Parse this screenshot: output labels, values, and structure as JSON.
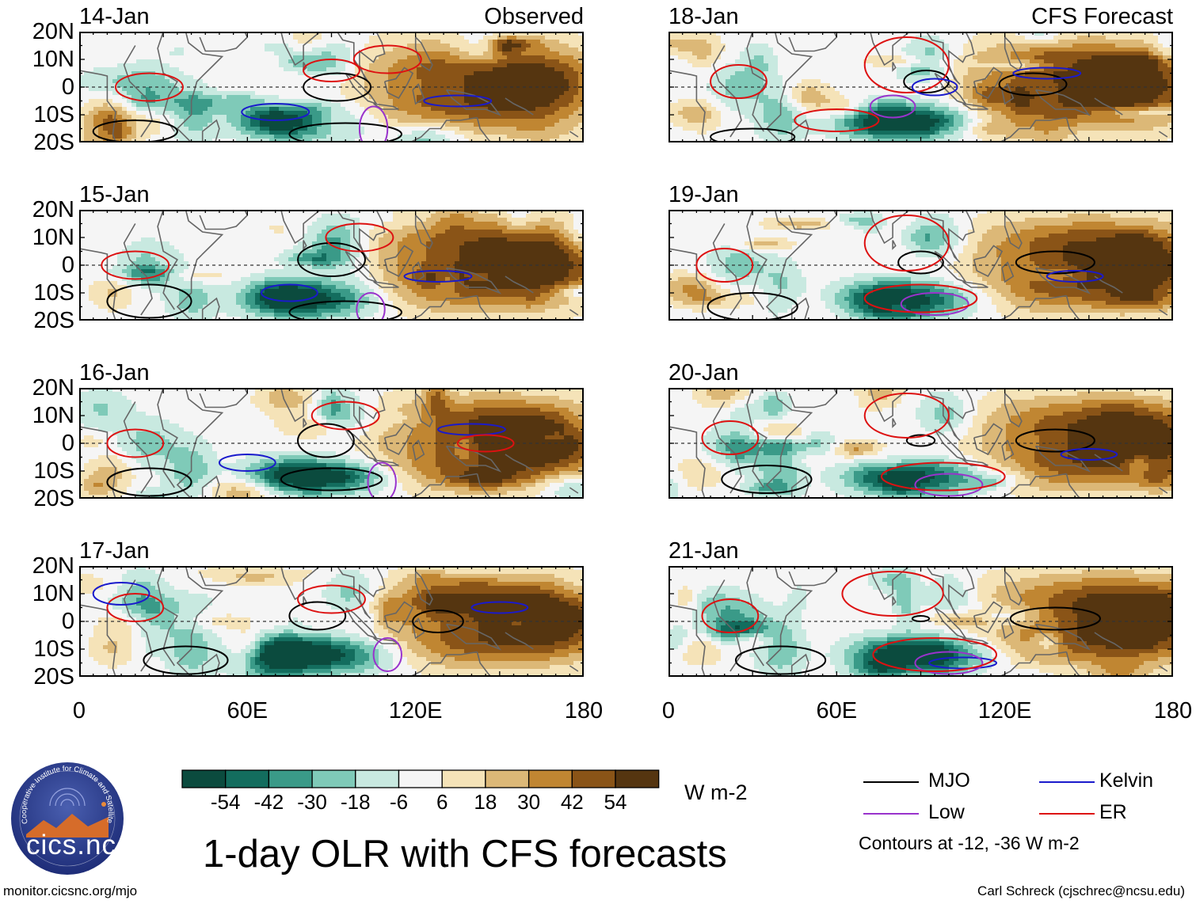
{
  "title": "1-day OLR with CFS forecasts",
  "columns": {
    "left_tag": "Observed",
    "right_tag": "CFS Forecast"
  },
  "panels": [
    {
      "date": "14-Jan",
      "source": "observed"
    },
    {
      "date": "15-Jan",
      "source": "observed"
    },
    {
      "date": "16-Jan",
      "source": "observed"
    },
    {
      "date": "17-Jan",
      "source": "observed"
    },
    {
      "date": "18-Jan",
      "source": "forecast"
    },
    {
      "date": "19-Jan",
      "source": "forecast"
    },
    {
      "date": "20-Jan",
      "source": "forecast"
    },
    {
      "date": "21-Jan",
      "source": "forecast"
    }
  ],
  "chart_data": {
    "type": "heatmap",
    "title": "1-day OLR with CFS forecasts",
    "variable": "OLR anomaly",
    "units": "W m-2",
    "x_range": [
      0,
      180
    ],
    "y_range": [
      -20,
      20
    ],
    "lat_ticks": [
      "20N",
      "10N",
      "0",
      "10S",
      "20S"
    ],
    "lat_values": [
      20,
      10,
      0,
      -10,
      -20
    ],
    "lon_ticks": [
      "0",
      "60E",
      "120E",
      "180"
    ],
    "lon_values": [
      0,
      60,
      120,
      180
    ],
    "colorbar": {
      "labels": [
        "-54",
        "-42",
        "-30",
        "-18",
        "-6",
        "6",
        "18",
        "30",
        "42",
        "54"
      ],
      "colors": [
        "#0b4b3e",
        "#136d5e",
        "#3a9a88",
        "#7fcab8",
        "#c8e9e0",
        "#f5f5f5",
        "#f5e3b8",
        "#dcb877",
        "#c08632",
        "#8a5417",
        "#553510"
      ]
    },
    "contours": [
      {
        "name": "MJO",
        "color": "#000000"
      },
      {
        "name": "Kelvin",
        "color": "#1a1acc"
      },
      {
        "name": "Low",
        "color": "#9933cc"
      },
      {
        "name": "ER",
        "color": "#dd1111"
      }
    ],
    "contour_levels_note": "Contours at -12, -36 W m-2"
  },
  "footer": {
    "url": "monitor.cicsnc.org/mjo",
    "credit": "Carl Schreck (cjschrec@ncsu.edu)",
    "logo_text": "cics.nc",
    "logo_arc_text": "Cooperative Institute for Climate and Satellites"
  }
}
